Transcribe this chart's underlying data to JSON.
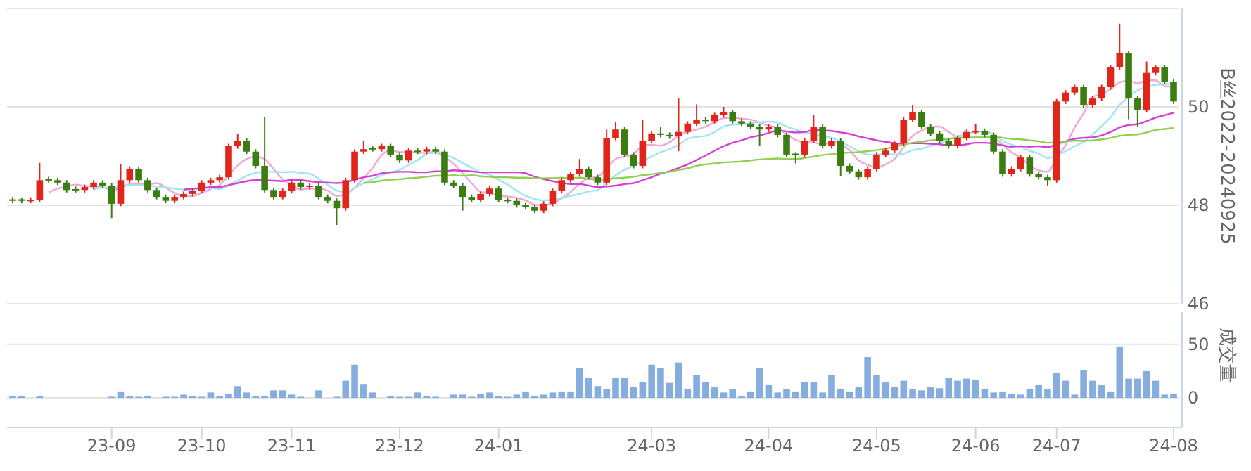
{
  "chart_data": [
    {
      "type": "candlestick",
      "ylabel": "B丝2022-20240925",
      "ylim": [
        46,
        52
      ],
      "yticks": [
        46,
        48,
        50,
        {
          "value": 52,
          "label": null
        }
      ],
      "grid": "y",
      "tick_labels": "y",
      "categories": [
        null,
        null,
        null,
        null,
        null,
        null,
        null,
        null,
        null,
        null,
        null,
        null,
        null,
        null,
        null,
        null,
        null,
        null,
        null,
        null,
        null,
        null,
        null,
        null,
        null,
        null,
        null,
        null,
        null,
        null,
        null,
        null,
        null,
        null,
        null,
        null,
        null,
        null,
        null,
        null,
        null,
        null,
        null,
        null,
        null,
        null,
        null,
        null,
        null,
        null,
        null,
        null,
        null,
        null,
        null,
        null,
        null,
        null,
        null,
        null,
        null,
        null,
        null,
        null,
        null,
        null,
        null,
        null,
        null,
        null,
        null,
        null,
        null,
        null,
        null,
        null,
        null,
        null,
        null,
        null,
        null,
        null,
        null,
        null,
        null,
        null,
        null,
        null,
        null,
        null,
        null,
        null,
        null,
        null,
        null,
        null,
        null,
        null,
        null,
        null,
        null,
        null,
        null,
        null,
        null,
        null,
        null,
        null,
        null,
        null,
        null,
        null,
        null,
        null,
        null,
        null,
        null,
        null,
        null,
        null,
        null,
        null,
        null,
        null,
        null,
        null,
        null,
        null,
        null,
        null
      ],
      "ohlc": [
        [
          48.12,
          48.17,
          48.04,
          48.09
        ],
        [
          48.12,
          48.15,
          48.04,
          48.09
        ],
        [
          48.09,
          48.16,
          48.04,
          48.11
        ],
        [
          48.11,
          48.86,
          48.06,
          48.51
        ],
        [
          48.53,
          48.58,
          48.46,
          48.51
        ],
        [
          48.51,
          48.56,
          48.41,
          48.46
        ],
        [
          48.46,
          48.51,
          48.26,
          48.31
        ],
        [
          48.33,
          48.38,
          48.26,
          48.31
        ],
        [
          48.31,
          48.42,
          48.26,
          48.37
        ],
        [
          48.37,
          48.51,
          48.32,
          48.46
        ],
        [
          48.46,
          48.51,
          48.35,
          48.4
        ],
        [
          48.4,
          48.45,
          47.74,
          48.03
        ],
        [
          48.03,
          48.83,
          47.98,
          48.51
        ],
        [
          48.51,
          48.79,
          48.46,
          48.74
        ],
        [
          48.74,
          48.79,
          48.46,
          48.51
        ],
        [
          48.51,
          48.56,
          48.26,
          48.31
        ],
        [
          48.31,
          48.36,
          48.12,
          48.17
        ],
        [
          48.17,
          48.22,
          48.04,
          48.09
        ],
        [
          48.09,
          48.22,
          48.04,
          48.17
        ],
        [
          48.17,
          48.28,
          48.12,
          48.23
        ],
        [
          48.23,
          48.34,
          48.18,
          48.29
        ],
        [
          48.29,
          48.51,
          48.24,
          48.46
        ],
        [
          48.46,
          48.56,
          48.41,
          48.51
        ],
        [
          48.51,
          48.62,
          48.46,
          48.57
        ],
        [
          48.57,
          49.25,
          48.52,
          49.2
        ],
        [
          49.2,
          49.45,
          49.15,
          49.31
        ],
        [
          49.31,
          49.36,
          49.04,
          49.09
        ],
        [
          49.09,
          49.14,
          48.75,
          48.8
        ],
        [
          48.8,
          49.8,
          48.26,
          48.31
        ],
        [
          48.31,
          48.36,
          48.12,
          48.17
        ],
        [
          48.17,
          48.34,
          48.12,
          48.29
        ],
        [
          48.29,
          48.51,
          48.24,
          48.46
        ],
        [
          48.46,
          48.51,
          48.32,
          48.37
        ],
        [
          48.37,
          48.45,
          48.32,
          48.4
        ],
        [
          48.4,
          48.45,
          48.12,
          48.17
        ],
        [
          48.17,
          48.22,
          48.04,
          48.09
        ],
        [
          48.09,
          48.14,
          47.6,
          47.94
        ],
        [
          47.94,
          48.56,
          47.89,
          48.51
        ],
        [
          48.51,
          49.14,
          48.46,
          49.09
        ],
        [
          49.09,
          49.3,
          49.04,
          49.14
        ],
        [
          49.16,
          49.21,
          49.09,
          49.14
        ],
        [
          49.14,
          49.25,
          49.09,
          49.2
        ],
        [
          49.2,
          49.25,
          48.98,
          49.03
        ],
        [
          49.03,
          49.08,
          48.86,
          48.91
        ],
        [
          48.91,
          49.16,
          48.86,
          49.11
        ],
        [
          49.11,
          49.16,
          49.04,
          49.09
        ],
        [
          49.09,
          49.19,
          49.04,
          49.14
        ],
        [
          49.14,
          49.19,
          49.04,
          49.09
        ],
        [
          49.09,
          49.14,
          48.41,
          48.46
        ],
        [
          48.46,
          48.51,
          48.35,
          48.4
        ],
        [
          48.4,
          48.45,
          47.89,
          48.17
        ],
        [
          48.17,
          48.22,
          48.06,
          48.11
        ],
        [
          48.11,
          48.28,
          48.06,
          48.23
        ],
        [
          48.23,
          48.39,
          48.18,
          48.34
        ],
        [
          48.34,
          48.39,
          48.06,
          48.11
        ],
        [
          48.11,
          48.16,
          48.04,
          48.09
        ],
        [
          48.09,
          48.14,
          47.95,
          48.0
        ],
        [
          48.0,
          48.05,
          47.92,
          47.97
        ],
        [
          47.97,
          48.02,
          47.84,
          47.89
        ],
        [
          47.89,
          48.08,
          47.84,
          48.03
        ],
        [
          48.03,
          48.34,
          47.98,
          48.29
        ],
        [
          48.29,
          48.56,
          48.24,
          48.51
        ],
        [
          48.51,
          48.68,
          48.46,
          48.63
        ],
        [
          48.63,
          48.94,
          48.58,
          48.74
        ],
        [
          48.74,
          48.79,
          48.52,
          48.57
        ],
        [
          48.57,
          48.62,
          48.41,
          48.46
        ],
        [
          48.46,
          49.54,
          48.41,
          49.37
        ],
        [
          49.37,
          49.69,
          49.32,
          49.54
        ],
        [
          49.54,
          49.59,
          48.98,
          49.03
        ],
        [
          49.03,
          49.08,
          48.75,
          48.8
        ],
        [
          48.8,
          49.74,
          48.75,
          49.31
        ],
        [
          49.31,
          49.51,
          49.26,
          49.46
        ],
        [
          49.46,
          49.6,
          49.38,
          49.43
        ],
        [
          49.43,
          49.48,
          49.35,
          49.4
        ],
        [
          49.4,
          50.17,
          49.1,
          49.49
        ],
        [
          49.49,
          49.71,
          49.44,
          49.66
        ],
        [
          49.66,
          50.05,
          49.61,
          49.74
        ],
        [
          49.74,
          49.79,
          49.66,
          49.71
        ],
        [
          49.71,
          49.88,
          49.66,
          49.83
        ],
        [
          49.83,
          50.0,
          49.78,
          49.89
        ],
        [
          49.89,
          49.94,
          49.66,
          49.71
        ],
        [
          49.71,
          49.76,
          49.61,
          49.66
        ],
        [
          49.66,
          49.71,
          49.55,
          49.6
        ],
        [
          49.6,
          49.65,
          49.2,
          49.54
        ],
        [
          49.54,
          49.65,
          49.49,
          49.6
        ],
        [
          49.6,
          49.65,
          49.38,
          49.43
        ],
        [
          49.43,
          49.48,
          48.98,
          49.03
        ],
        [
          49.05,
          49.08,
          48.85,
          49.03
        ],
        [
          49.03,
          49.36,
          48.98,
          49.31
        ],
        [
          49.31,
          49.83,
          49.26,
          49.6
        ],
        [
          49.6,
          49.65,
          49.15,
          49.2
        ],
        [
          49.2,
          49.36,
          49.15,
          49.31
        ],
        [
          49.31,
          49.36,
          48.6,
          48.8
        ],
        [
          48.8,
          48.85,
          48.64,
          48.69
        ],
        [
          48.69,
          48.74,
          48.52,
          48.57
        ],
        [
          48.57,
          48.79,
          48.52,
          48.74
        ],
        [
          48.74,
          49.08,
          48.69,
          49.03
        ],
        [
          49.03,
          49.16,
          48.98,
          49.11
        ],
        [
          49.11,
          49.31,
          49.06,
          49.26
        ],
        [
          49.26,
          49.79,
          49.21,
          49.74
        ],
        [
          49.74,
          50.03,
          49.69,
          49.89
        ],
        [
          49.89,
          49.94,
          49.55,
          49.6
        ],
        [
          49.6,
          49.65,
          49.41,
          49.46
        ],
        [
          49.46,
          49.51,
          49.26,
          49.31
        ],
        [
          49.31,
          49.36,
          49.15,
          49.2
        ],
        [
          49.2,
          49.42,
          49.15,
          49.37
        ],
        [
          49.37,
          49.54,
          49.32,
          49.49
        ],
        [
          49.49,
          49.65,
          49.44,
          49.51
        ],
        [
          49.51,
          49.56,
          49.38,
          49.43
        ],
        [
          49.43,
          49.48,
          49.04,
          49.09
        ],
        [
          49.09,
          49.14,
          48.58,
          48.63
        ],
        [
          48.63,
          48.79,
          48.58,
          48.74
        ],
        [
          48.74,
          49.02,
          48.69,
          48.97
        ],
        [
          48.97,
          49.02,
          48.58,
          48.63
        ],
        [
          48.63,
          48.68,
          48.52,
          48.57
        ],
        [
          48.57,
          48.62,
          48.4,
          48.51
        ],
        [
          48.51,
          50.16,
          48.46,
          50.11
        ],
        [
          50.11,
          50.34,
          50.06,
          50.29
        ],
        [
          50.29,
          50.45,
          50.24,
          50.4
        ],
        [
          50.4,
          50.45,
          49.98,
          50.03
        ],
        [
          50.03,
          50.22,
          49.98,
          50.17
        ],
        [
          50.17,
          50.45,
          50.12,
          50.4
        ],
        [
          50.4,
          50.85,
          50.35,
          50.8
        ],
        [
          50.8,
          51.69,
          50.75,
          51.09
        ],
        [
          51.09,
          51.14,
          49.75,
          50.17
        ],
        [
          50.17,
          50.22,
          49.6,
          49.94
        ],
        [
          49.94,
          50.92,
          49.89,
          50.69
        ],
        [
          50.69,
          50.85,
          50.64,
          50.8
        ],
        [
          50.8,
          50.85,
          50.46,
          50.51
        ],
        [
          50.51,
          50.56,
          50.06,
          50.11
        ]
      ],
      "series": [
        {
          "type": "line",
          "color": "#f0a8d8",
          "values": [
            null,
            null,
            null,
            null,
            48.26,
            48.34,
            48.38,
            48.42,
            48.39,
            48.38,
            48.37,
            48.31,
            48.35,
            48.43,
            48.44,
            48.42,
            48.45,
            48.36,
            48.25,
            48.19,
            48.19,
            48.25,
            48.33,
            48.41,
            48.61,
            48.81,
            48.94,
            48.99,
            48.94,
            48.74,
            48.53,
            48.41,
            48.32,
            48.34,
            48.34,
            48.3,
            48.19,
            48.22,
            48.36,
            48.55,
            48.76,
            49.02,
            49.12,
            49.08,
            49.08,
            49.07,
            49.06,
            49.07,
            48.98,
            48.84,
            48.65,
            48.45,
            48.27,
            48.25,
            48.19,
            48.18,
            48.15,
            48.1,
            48.01,
            48.0,
            48.04,
            48.14,
            48.27,
            48.44,
            48.55,
            48.58,
            48.75,
            48.94,
            48.99,
            49.04,
            49.21,
            49.23,
            49.21,
            49.28,
            49.42,
            49.49,
            49.54,
            49.6,
            49.69,
            49.77,
            49.78,
            49.76,
            49.74,
            49.68,
            49.62,
            49.57,
            49.44,
            49.33,
            49.28,
            49.28,
            49.23,
            49.29,
            49.24,
            49.12,
            48.91,
            48.82,
            48.77,
            48.83,
            48.94,
            49.18,
            49.41,
            49.52,
            49.59,
            49.6,
            49.49,
            49.39,
            49.37,
            49.38,
            49.4,
            49.38,
            49.23,
            49.08,
            48.97,
            48.81,
            48.71,
            48.68,
            48.96,
            49.22,
            49.58,
            49.87,
            50.2,
            50.26,
            50.36,
            50.5,
            50.53,
            50.48,
            50.54,
            50.54,
            50.42,
            50.41
          ]
        },
        {
          "type": "line",
          "color": "#9ee6f2",
          "values": [
            null,
            null,
            null,
            null,
            null,
            null,
            null,
            null,
            null,
            48.32,
            48.36,
            48.35,
            48.39,
            48.41,
            48.41,
            48.4,
            48.38,
            48.36,
            48.34,
            48.32,
            48.31,
            48.35,
            48.35,
            48.33,
            48.4,
            48.5,
            48.6,
            48.66,
            48.68,
            48.68,
            48.67,
            48.68,
            48.66,
            48.64,
            48.54,
            48.42,
            48.3,
            48.27,
            48.35,
            48.45,
            48.53,
            48.61,
            48.67,
            48.72,
            48.82,
            48.92,
            49.04,
            49.1,
            49.03,
            48.96,
            48.86,
            48.76,
            48.67,
            48.62,
            48.52,
            48.42,
            48.3,
            48.19,
            48.13,
            48.1,
            48.11,
            48.15,
            48.19,
            48.23,
            48.28,
            48.31,
            48.45,
            48.61,
            48.72,
            48.8,
            48.9,
            48.99,
            49.08,
            49.14,
            49.23,
            49.35,
            49.39,
            49.41,
            49.49,
            49.6,
            49.64,
            49.65,
            49.67,
            49.69,
            49.7,
            49.68,
            49.6,
            49.54,
            49.48,
            49.45,
            49.4,
            49.37,
            49.29,
            49.2,
            49.1,
            49.03,
            49.03,
            49.04,
            49.03,
            49.05,
            49.12,
            49.15,
            49.21,
            49.27,
            49.34,
            49.4,
            49.45,
            49.49,
            49.5,
            49.44,
            49.31,
            49.23,
            49.18,
            49.11,
            49.05,
            48.96,
            49.02,
            49.1,
            49.2,
            49.29,
            49.44,
            49.61,
            49.79,
            50.04,
            50.2,
            50.34,
            50.4,
            50.45,
            50.46,
            50.47
          ]
        },
        {
          "type": "line",
          "color": "#d63fd6",
          "values": [
            null,
            null,
            null,
            null,
            null,
            null,
            null,
            null,
            null,
            null,
            null,
            null,
            null,
            null,
            null,
            null,
            null,
            null,
            null,
            48.32,
            48.34,
            48.35,
            48.37,
            48.37,
            48.41,
            48.45,
            48.49,
            48.51,
            48.51,
            48.5,
            48.49,
            48.52,
            48.51,
            48.49,
            48.47,
            48.46,
            48.45,
            48.47,
            48.52,
            48.57,
            48.6,
            48.65,
            48.67,
            48.68,
            48.68,
            48.67,
            48.67,
            48.69,
            48.69,
            48.71,
            48.7,
            48.69,
            48.67,
            48.67,
            48.67,
            48.67,
            48.67,
            48.65,
            48.58,
            48.53,
            48.49,
            48.46,
            48.43,
            48.43,
            48.4,
            48.37,
            48.38,
            48.4,
            48.43,
            48.45,
            48.51,
            48.57,
            48.64,
            48.69,
            48.76,
            48.83,
            48.92,
            49.01,
            49.11,
            49.2,
            49.27,
            49.32,
            49.38,
            49.42,
            49.47,
            49.52,
            49.5,
            49.48,
            49.49,
            49.53,
            49.52,
            49.51,
            49.48,
            49.45,
            49.4,
            49.36,
            49.32,
            49.29,
            49.26,
            49.25,
            49.26,
            49.26,
            49.25,
            49.24,
            49.22,
            49.22,
            49.24,
            49.27,
            49.27,
            49.25,
            49.22,
            49.19,
            49.2,
            49.19,
            49.2,
            49.18,
            49.24,
            49.3,
            49.35,
            49.37,
            49.38,
            49.42,
            49.49,
            49.58,
            49.63,
            49.65,
            49.71,
            49.78,
            49.83,
            49.88
          ]
        },
        {
          "type": "line",
          "color": "#8fd14f",
          "values": [
            null,
            null,
            null,
            null,
            null,
            null,
            null,
            null,
            null,
            null,
            null,
            null,
            null,
            null,
            null,
            null,
            null,
            null,
            null,
            null,
            null,
            null,
            null,
            null,
            null,
            null,
            null,
            null,
            null,
            null,
            null,
            null,
            null,
            null,
            null,
            null,
            null,
            null,
            null,
            48.45,
            48.47,
            48.5,
            48.52,
            48.53,
            48.55,
            48.56,
            48.58,
            48.6,
            48.6,
            48.61,
            48.6,
            48.61,
            48.59,
            48.58,
            48.57,
            48.57,
            48.56,
            48.56,
            48.55,
            48.55,
            48.55,
            48.56,
            48.55,
            48.56,
            48.54,
            48.52,
            48.53,
            48.55,
            48.56,
            48.58,
            48.61,
            48.63,
            48.66,
            48.68,
            48.72,
            48.75,
            48.8,
            48.83,
            48.85,
            48.87,
            48.88,
            48.89,
            48.91,
            48.93,
            48.94,
            48.95,
            48.94,
            48.94,
            48.96,
            48.99,
            49.02,
            49.04,
            49.06,
            49.07,
            49.08,
            49.1,
            49.12,
            49.15,
            49.19,
            49.23,
            49.27,
            49.29,
            49.32,
            49.33,
            49.35,
            49.37,
            49.37,
            49.38,
            49.38,
            49.39,
            49.37,
            49.35,
            49.34,
            49.32,
            49.3,
            49.27,
            49.28,
            49.3,
            49.31,
            49.31,
            49.32,
            49.34,
            49.37,
            49.41,
            49.43,
            49.44,
            49.48,
            49.53,
            49.55,
            49.57
          ]
        }
      ]
    },
    {
      "type": "bar",
      "ylabel": "成交量",
      "ylim": [
        0,
        80
      ],
      "yticks": [
        0,
        50
      ],
      "grid": "y",
      "color": "#86ade0",
      "categories": [
        null,
        null,
        null,
        null,
        null,
        null,
        null,
        null,
        null,
        null,
        null,
        "23-09",
        null,
        null,
        null,
        null,
        null,
        null,
        null,
        null,
        null,
        "23-10",
        null,
        null,
        null,
        null,
        null,
        null,
        null,
        null,
        null,
        "23-11",
        null,
        null,
        null,
        null,
        null,
        null,
        null,
        null,
        null,
        null,
        null,
        "23-12",
        null,
        null,
        null,
        null,
        null,
        null,
        null,
        null,
        null,
        null,
        "24-01",
        null,
        null,
        null,
        null,
        null,
        null,
        null,
        null,
        null,
        null,
        null,
        null,
        null,
        null,
        null,
        null,
        "24-03",
        null,
        null,
        null,
        null,
        null,
        null,
        null,
        null,
        null,
        null,
        null,
        null,
        "24-04",
        null,
        null,
        null,
        null,
        null,
        null,
        null,
        null,
        null,
        null,
        null,
        "24-05",
        null,
        null,
        null,
        null,
        null,
        null,
        null,
        null,
        null,
        null,
        "24-06",
        null,
        null,
        null,
        null,
        null,
        null,
        null,
        null,
        "24-07",
        null,
        null,
        null,
        null,
        null,
        null,
        null,
        null,
        null,
        null,
        null,
        null,
        "24-08"
      ],
      "values": [
        2,
        2,
        0,
        2,
        0,
        0,
        0,
        0,
        0,
        0,
        0,
        1,
        6,
        2,
        1,
        2,
        0,
        1,
        1,
        3,
        2,
        1,
        5,
        2,
        4,
        11,
        5,
        2,
        2,
        7,
        7,
        3,
        1,
        0,
        7,
        0,
        1,
        16,
        31,
        13,
        5,
        0,
        2,
        1,
        1,
        5,
        2,
        1,
        0,
        3,
        3,
        1,
        4,
        5,
        2,
        1,
        3,
        6,
        2,
        3,
        5,
        6,
        6,
        28,
        19,
        11,
        8,
        19,
        19,
        10,
        15,
        31,
        28,
        14,
        33,
        8,
        21,
        15,
        10,
        5,
        8,
        2,
        6,
        28,
        12,
        5,
        8,
        6,
        15,
        15,
        5,
        21,
        8,
        6,
        10,
        38,
        21,
        15,
        10,
        16,
        8,
        7,
        10,
        9,
        19,
        16,
        18,
        17,
        8,
        5,
        6,
        4,
        3,
        8,
        12,
        8,
        23,
        16,
        3,
        26,
        16,
        12,
        6,
        48,
        18,
        18,
        25,
        16,
        3,
        4
      ]
    }
  ]
}
